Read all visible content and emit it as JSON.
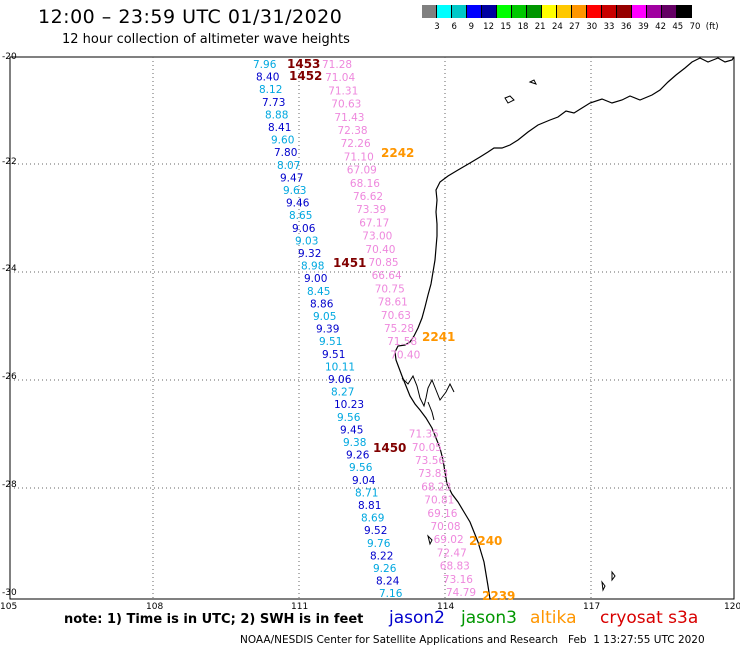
{
  "header": {
    "title": "12:00 – 23:59 UTC 01/31/2020",
    "subtitle": "12 hour collection of altimeter wave heights"
  },
  "color_scale": {
    "colors": [
      "#808080",
      "#00ffff",
      "#00c8c8",
      "#0000ff",
      "#0000a0",
      "#00ff00",
      "#00c800",
      "#009600",
      "#ffff00",
      "#ffc800",
      "#ff9600",
      "#ff0000",
      "#c80000",
      "#960000",
      "#ff00ff",
      "#a000a0",
      "#640064",
      "#000000"
    ],
    "labels": [
      "3",
      "6",
      "9",
      "12",
      "15",
      "18",
      "21",
      "24",
      "27",
      "30",
      "33",
      "36",
      "39",
      "42",
      "45",
      "70",
      "(ft)"
    ]
  },
  "axes": {
    "lat_labels": [
      "-20",
      "-22",
      "-24",
      "-26",
      "-28",
      "-30"
    ],
    "lon_labels": [
      "105",
      "108",
      "111",
      "114",
      "117",
      "120"
    ]
  },
  "colors": {
    "jason2": "#0000cc",
    "jason2_light": "#00a8e0",
    "jason3": "#009600",
    "altika": "#ff9600",
    "cryosat": "#d80000",
    "cryosat_dark": "#800000",
    "s3a": "#ee88dd"
  },
  "tracks": {
    "jason2": [
      "7.96",
      "8.40",
      "8.12",
      "7.73",
      "8.88",
      "8.41",
      "9.60",
      "7.80",
      "8.07",
      "9.47",
      "9.63",
      "9.46",
      "8.65",
      "9.06",
      "9.03",
      "9.32",
      "8.98",
      "9.00",
      "8.45",
      "8.86",
      "9.05",
      "9.39",
      "9.51",
      "9.51",
      "10.11",
      "9.06",
      "8.27",
      "10.23",
      "9.56",
      "9.45",
      "9.38",
      "9.26",
      "9.56",
      "9.04",
      "8.71",
      "8.81",
      "8.69",
      "9.52",
      "9.76",
      "8.22",
      "9.26",
      "8.24",
      "7.16"
    ],
    "s3a": [
      "71.28",
      "71.04",
      "71.31",
      "70.63",
      "71.43",
      "72.38",
      "72.26",
      "71.10",
      "67.09",
      "68.16",
      "76.62",
      "73.39",
      "67.17",
      "73.00",
      "70.40",
      "70.85",
      "66.64",
      "70.75",
      "78.61",
      "70.63",
      "75.28",
      "71.58",
      "70.40",
      "",
      "",
      "",
      "",
      "",
      "71.35",
      "70.05",
      "73.56",
      "73.83",
      "68.23",
      "70.81",
      "69.16",
      "70.08",
      "69.02",
      "72.47",
      "68.83",
      "73.16",
      "74.79"
    ]
  },
  "pass_labels": {
    "cryosat": [
      "1453",
      "1452",
      "1451",
      "1450"
    ],
    "altika": [
      "2242",
      "2241",
      "2240",
      "2239"
    ]
  },
  "footer": {
    "note": "note: 1) Time is in UTC; 2) SWH is in feet",
    "legend": [
      "jason2",
      "jason3",
      "altika",
      "cryosat s3a"
    ],
    "credit": "NOAA/NESDIS Center for Satellite Applications and Research   Feb  1 13:27:55 UTC 2020"
  }
}
